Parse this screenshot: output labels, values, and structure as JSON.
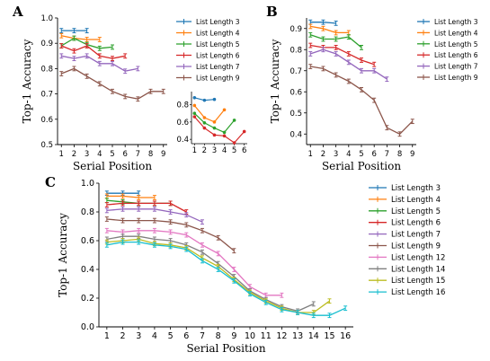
{
  "chart_data": [
    {
      "panel": "A",
      "type": "line",
      "ylabel": "Top-1 Accuracy",
      "xlabel": "Serial Position",
      "xlim": [
        0.7,
        9.3
      ],
      "ylim": [
        0.5,
        1.0
      ],
      "xticks": [
        "1",
        "2",
        "3",
        "4",
        "5",
        "6",
        "7",
        "8",
        "9"
      ],
      "yticks": [
        "0.5",
        "0.6",
        "0.7",
        "0.8",
        "0.9",
        "1.0"
      ],
      "legend_position": "right",
      "series": [
        {
          "name": "List Length 3",
          "color": "#1f77b4",
          "x": [
            1,
            2,
            3
          ],
          "values": [
            0.95,
            0.95,
            0.95
          ]
        },
        {
          "name": "List Length 4",
          "color": "#ff7f0e",
          "x": [
            1,
            2,
            3,
            4
          ],
          "values": [
            0.93,
            0.92,
            0.915,
            0.915
          ]
        },
        {
          "name": "List Length 5",
          "color": "#2ca02c",
          "x": [
            1,
            2,
            3,
            4,
            5
          ],
          "values": [
            0.89,
            0.92,
            0.895,
            0.88,
            0.885
          ]
        },
        {
          "name": "List Length 6",
          "color": "#d62728",
          "x": [
            1,
            2,
            3,
            4,
            5,
            6
          ],
          "values": [
            0.89,
            0.87,
            0.89,
            0.85,
            0.84,
            0.85
          ]
        },
        {
          "name": "List Length 7",
          "color": "#9467bd",
          "x": [
            1,
            2,
            3,
            4,
            5,
            6,
            7
          ],
          "values": [
            0.85,
            0.84,
            0.85,
            0.82,
            0.82,
            0.79,
            0.8
          ]
        },
        {
          "name": "List Length 9",
          "color": "#8c564b",
          "x": [
            1,
            2,
            3,
            4,
            5,
            6,
            7,
            8,
            9
          ],
          "values": [
            0.78,
            0.8,
            0.77,
            0.74,
            0.71,
            0.69,
            0.68,
            0.71,
            0.71
          ]
        }
      ],
      "inset": {
        "xlim": [
          0.7,
          6.3
        ],
        "ylim": [
          0.35,
          0.95
        ],
        "xticks": [
          "1",
          "2",
          "3",
          "4",
          "5",
          "6"
        ],
        "yticks": [
          "0.4",
          "0.6",
          "0.8"
        ],
        "series": [
          {
            "color": "#1f77b4",
            "x": [
              1,
              2,
              3
            ],
            "values": [
              0.88,
              0.85,
              0.86
            ]
          },
          {
            "color": "#ff7f0e",
            "x": [
              1,
              2,
              3,
              4
            ],
            "values": [
              0.79,
              0.65,
              0.6,
              0.74
            ]
          },
          {
            "color": "#2ca02c",
            "x": [
              1,
              2,
              3,
              4,
              5
            ],
            "values": [
              0.7,
              0.59,
              0.53,
              0.48,
              0.62
            ]
          },
          {
            "color": "#d62728",
            "x": [
              1,
              2,
              3,
              4,
              5,
              6
            ],
            "values": [
              0.66,
              0.53,
              0.45,
              0.44,
              0.36,
              0.49
            ]
          }
        ]
      }
    },
    {
      "panel": "B",
      "type": "line",
      "ylabel": "Top-1 Accuracy",
      "xlabel": "Serial Position",
      "xlim": [
        0.7,
        9.3
      ],
      "ylim": [
        0.35,
        0.95
      ],
      "xticks": [
        "1",
        "2",
        "3",
        "4",
        "5",
        "6",
        "7",
        "8",
        "9"
      ],
      "yticks": [
        "0.4",
        "0.5",
        "0.6",
        "0.7",
        "0.8",
        "0.9"
      ],
      "legend_position": "right",
      "series": [
        {
          "name": "List Length 3",
          "color": "#1f77b4",
          "x": [
            1,
            2,
            3
          ],
          "values": [
            0.93,
            0.93,
            0.925
          ]
        },
        {
          "name": "List Length 4",
          "color": "#ff7f0e",
          "x": [
            1,
            2,
            3,
            4
          ],
          "values": [
            0.91,
            0.9,
            0.88,
            0.88
          ]
        },
        {
          "name": "List Length 5",
          "color": "#2ca02c",
          "x": [
            1,
            2,
            3,
            4,
            5
          ],
          "values": [
            0.87,
            0.85,
            0.85,
            0.86,
            0.81
          ]
        },
        {
          "name": "List Length 6",
          "color": "#d62728",
          "x": [
            1,
            2,
            3,
            4,
            5,
            6
          ],
          "values": [
            0.82,
            0.81,
            0.81,
            0.78,
            0.75,
            0.73
          ]
        },
        {
          "name": "List Length 7",
          "color": "#9467bd",
          "x": [
            1,
            2,
            3,
            4,
            5,
            6,
            7
          ],
          "values": [
            0.78,
            0.8,
            0.78,
            0.74,
            0.7,
            0.7,
            0.66
          ]
        },
        {
          "name": "List Length 9",
          "color": "#8c564b",
          "x": [
            1,
            2,
            3,
            4,
            5,
            6,
            7,
            8,
            9
          ],
          "values": [
            0.72,
            0.71,
            0.68,
            0.65,
            0.61,
            0.56,
            0.43,
            0.4,
            0.46
          ]
        }
      ]
    },
    {
      "panel": "C",
      "type": "line",
      "ylabel": "Top-1 Accuracy",
      "xlabel": "Serial Position",
      "xlim": [
        0.5,
        16.5
      ],
      "ylim": [
        0.0,
        1.0
      ],
      "xticks": [
        "1",
        "2",
        "3",
        "4",
        "5",
        "6",
        "7",
        "8",
        "9",
        "10",
        "11",
        "12",
        "13",
        "14",
        "15",
        "16"
      ],
      "yticks": [
        "0.0",
        "0.2",
        "0.4",
        "0.6",
        "0.8",
        "1.0"
      ],
      "legend_position": "right",
      "series": [
        {
          "name": "List Length 3",
          "color": "#1f77b4",
          "x": [
            1,
            2,
            3
          ],
          "values": [
            0.93,
            0.93,
            0.93
          ]
        },
        {
          "name": "List Length 4",
          "color": "#ff7f0e",
          "x": [
            1,
            2,
            3,
            4
          ],
          "values": [
            0.91,
            0.91,
            0.9,
            0.9
          ]
        },
        {
          "name": "List Length 5",
          "color": "#2ca02c",
          "x": [
            1,
            2,
            3,
            4,
            5
          ],
          "values": [
            0.88,
            0.87,
            0.86,
            0.86,
            0.86
          ]
        },
        {
          "name": "List Length 6",
          "color": "#d62728",
          "x": [
            1,
            2,
            3,
            4,
            5,
            6
          ],
          "values": [
            0.85,
            0.86,
            0.86,
            0.86,
            0.86,
            0.8
          ]
        },
        {
          "name": "List Length 7",
          "color": "#9467bd",
          "x": [
            1,
            2,
            3,
            4,
            5,
            6,
            7
          ],
          "values": [
            0.81,
            0.82,
            0.82,
            0.82,
            0.8,
            0.78,
            0.73
          ]
        },
        {
          "name": "List Length 9",
          "color": "#8c564b",
          "x": [
            1,
            2,
            3,
            4,
            5,
            6,
            7,
            8,
            9
          ],
          "values": [
            0.75,
            0.74,
            0.74,
            0.74,
            0.73,
            0.71,
            0.67,
            0.62,
            0.53
          ]
        },
        {
          "name": "List Length 12",
          "color": "#e377c2",
          "x": [
            1,
            2,
            3,
            4,
            5,
            6,
            7,
            8,
            9,
            10,
            11,
            12
          ],
          "values": [
            0.67,
            0.66,
            0.67,
            0.67,
            0.66,
            0.64,
            0.57,
            0.51,
            0.4,
            0.28,
            0.22,
            0.22
          ]
        },
        {
          "name": "List Length 14",
          "color": "#7f7f7f",
          "x": [
            1,
            2,
            3,
            4,
            5,
            6,
            7,
            8,
            9,
            10,
            11,
            12,
            13,
            14
          ],
          "values": [
            0.61,
            0.63,
            0.63,
            0.61,
            0.6,
            0.57,
            0.52,
            0.44,
            0.35,
            0.25,
            0.19,
            0.14,
            0.11,
            0.16
          ]
        },
        {
          "name": "List Length 15",
          "color": "#bcbd22",
          "x": [
            1,
            2,
            3,
            4,
            5,
            6,
            7,
            8,
            9,
            10,
            11,
            12,
            13,
            14,
            15
          ],
          "values": [
            0.59,
            0.6,
            0.61,
            0.58,
            0.57,
            0.55,
            0.48,
            0.42,
            0.33,
            0.24,
            0.18,
            0.13,
            0.1,
            0.1,
            0.18
          ]
        },
        {
          "name": "List Length 16",
          "color": "#17becf",
          "x": [
            1,
            2,
            3,
            4,
            5,
            6,
            7,
            8,
            9,
            10,
            11,
            12,
            13,
            14,
            15,
            16
          ],
          "values": [
            0.57,
            0.59,
            0.59,
            0.57,
            0.56,
            0.54,
            0.46,
            0.4,
            0.32,
            0.23,
            0.17,
            0.12,
            0.1,
            0.08,
            0.08,
            0.13
          ]
        }
      ]
    }
  ]
}
